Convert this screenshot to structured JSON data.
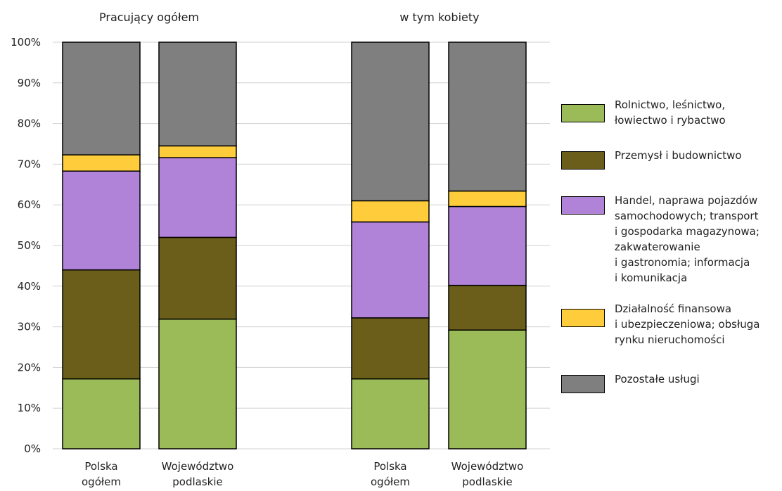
{
  "chart_data": {
    "type": "bar",
    "stacked": true,
    "percent_axis": true,
    "groups": [
      {
        "title": "Pracujący ogółem",
        "categories": [
          "Polska\nogółem",
          "Województwo\npodlaskie"
        ]
      },
      {
        "title": "w tym kobiety",
        "categories": [
          "Polska\nogółem",
          "Województwo\npodlaskie"
        ]
      }
    ],
    "y_ticks": [
      "0%",
      "10%",
      "20%",
      "30%",
      "40%",
      "50%",
      "60%",
      "70%",
      "80%",
      "90%",
      "100%"
    ],
    "ylim": [
      0,
      100
    ],
    "grid": true,
    "legend_position": "right",
    "series": [
      {
        "name": "Rolnictwo, leśnictwo,\nłowiectwo i rybactwo",
        "color": "#9bbb59",
        "values": [
          17.2,
          31.9,
          17.2,
          29.2
        ]
      },
      {
        "name": "Przemysł i budownictwo",
        "color": "#6b5e1a",
        "values": [
          26.8,
          20.1,
          15.0,
          11.0
        ]
      },
      {
        "name": "Handel, naprawa pojazdów\nsamochodowych; transport\ni gospodarka magazynowa;\nzakwaterowanie\ni gastronomia; informacja\ni komunikacja",
        "color": "#b183d8",
        "values": [
          24.3,
          19.6,
          23.6,
          19.4
        ]
      },
      {
        "name": "Działalność finansowa\ni ubezpieczeniowa; obsługa\nrynku nieruchomości",
        "color": "#ffcd3c",
        "values": [
          4.0,
          2.9,
          5.2,
          3.8
        ]
      },
      {
        "name": "Pozostałe usługi",
        "color": "#7f7f7f",
        "values": [
          27.7,
          25.5,
          39.0,
          36.6
        ]
      }
    ]
  }
}
